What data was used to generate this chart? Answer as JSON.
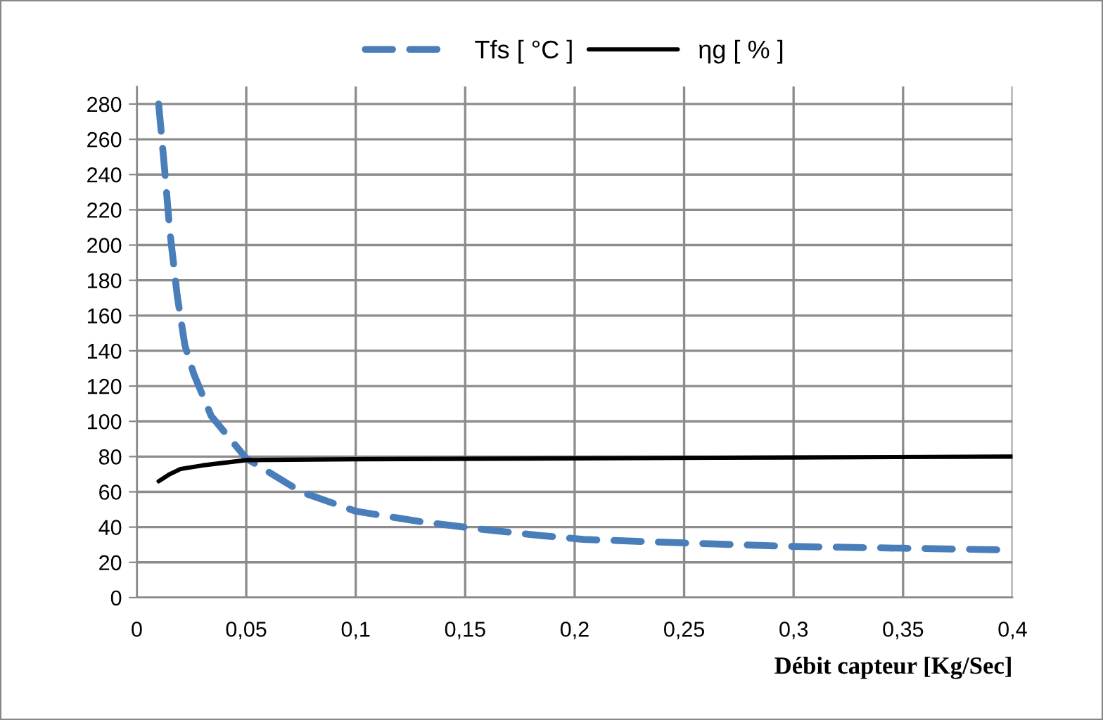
{
  "chart_data": {
    "type": "line",
    "xlabel": "Débit capteur [Kg/Sec]",
    "xlim": [
      0,
      0.4
    ],
    "xticks": [
      0,
      {
        "value": 0.05,
        "label": "0,05"
      },
      {
        "value": 0.1,
        "label": "0,1"
      },
      {
        "value": 0.15,
        "label": "0,15"
      },
      {
        "value": 0.2,
        "label": "0,2"
      },
      {
        "value": 0.25,
        "label": "0,25"
      },
      {
        "value": 0.3,
        "label": "0,3"
      },
      {
        "value": 0.35,
        "label": "0,35"
      },
      {
        "value": 0.4,
        "label": "0,4"
      }
    ],
    "ylim": [
      0,
      290
    ],
    "yticks": [
      0,
      20,
      40,
      60,
      80,
      100,
      120,
      140,
      160,
      180,
      200,
      220,
      240,
      260,
      280
    ],
    "grid": true,
    "legend": "top",
    "marker": "none",
    "series": [
      {
        "name": "Tfs [ °C ]",
        "color": "#4a7ebb",
        "line_style": "dashed",
        "x": [
          0.01,
          0.013,
          0.015,
          0.0185,
          0.022,
          0.026,
          0.034,
          0.05,
          0.075,
          0.1,
          0.13,
          0.156,
          0.182,
          0.204,
          0.25,
          0.3,
          0.35,
          0.4
        ],
        "values": [
          280,
          239,
          209,
          171,
          143,
          127,
          103,
          79,
          60,
          49,
          43,
          39,
          35.5,
          33,
          31,
          29,
          28,
          27
        ]
      },
      {
        "name": "ηg [ % ]",
        "color": "#000000",
        "line_style": "solid",
        "x": [
          0.01,
          0.015,
          0.02,
          0.03,
          0.05,
          0.1,
          0.2,
          0.3,
          0.4
        ],
        "values": [
          66,
          70,
          73,
          75,
          78,
          78.5,
          79,
          79.5,
          80
        ]
      }
    ]
  }
}
